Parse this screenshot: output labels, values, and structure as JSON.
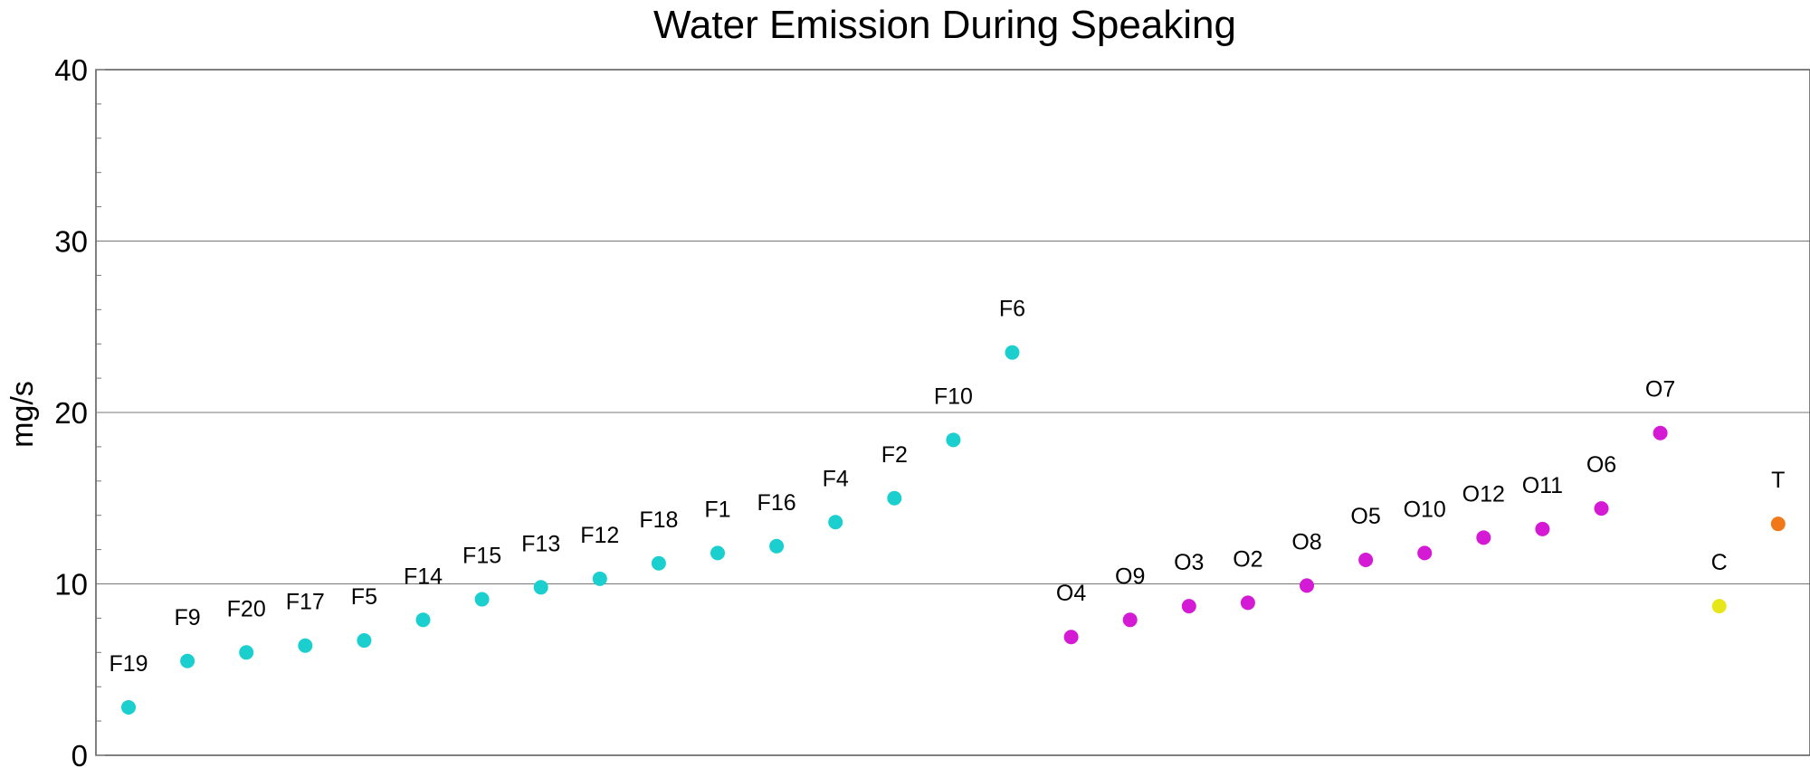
{
  "chart_data": {
    "type": "scatter",
    "title": "Water Emission During Speaking",
    "ylabel": "mg/s",
    "xlabel": "",
    "ylim": [
      0,
      40
    ],
    "yticks": [
      0,
      10,
      20,
      30,
      40
    ],
    "grid": "horizontal",
    "colors": {
      "F": "#1ccfcf",
      "O": "#d41ad4",
      "C": "#e6e619",
      "T": "#f07818"
    },
    "points": [
      {
        "label": "F19",
        "group": "F",
        "y": 2.8
      },
      {
        "label": "F9",
        "group": "F",
        "y": 5.5
      },
      {
        "label": "F20",
        "group": "F",
        "y": 6.0
      },
      {
        "label": "F17",
        "group": "F",
        "y": 6.4
      },
      {
        "label": "F5",
        "group": "F",
        "y": 6.7
      },
      {
        "label": "F14",
        "group": "F",
        "y": 7.9
      },
      {
        "label": "F15",
        "group": "F",
        "y": 9.1
      },
      {
        "label": "F13",
        "group": "F",
        "y": 9.8
      },
      {
        "label": "F12",
        "group": "F",
        "y": 10.3
      },
      {
        "label": "F18",
        "group": "F",
        "y": 11.2
      },
      {
        "label": "F1",
        "group": "F",
        "y": 11.8
      },
      {
        "label": "F16",
        "group": "F",
        "y": 12.2
      },
      {
        "label": "F4",
        "group": "F",
        "y": 13.6
      },
      {
        "label": "F2",
        "group": "F",
        "y": 15.0
      },
      {
        "label": "F10",
        "group": "F",
        "y": 18.4
      },
      {
        "label": "F6",
        "group": "F",
        "y": 23.5
      },
      {
        "label": "O4",
        "group": "O",
        "y": 6.9
      },
      {
        "label": "O9",
        "group": "O",
        "y": 7.9
      },
      {
        "label": "O3",
        "group": "O",
        "y": 8.7
      },
      {
        "label": "O2",
        "group": "O",
        "y": 8.9
      },
      {
        "label": "O8",
        "group": "O",
        "y": 9.9
      },
      {
        "label": "O5",
        "group": "O",
        "y": 11.4
      },
      {
        "label": "O10",
        "group": "O",
        "y": 11.8
      },
      {
        "label": "O12",
        "group": "O",
        "y": 12.7
      },
      {
        "label": "O11",
        "group": "O",
        "y": 13.2
      },
      {
        "label": "O6",
        "group": "O",
        "y": 14.4
      },
      {
        "label": "O7",
        "group": "O",
        "y": 18.8
      },
      {
        "label": "C",
        "group": "C",
        "y": 8.7
      },
      {
        "label": "T",
        "group": "T",
        "y": 13.5
      }
    ]
  }
}
